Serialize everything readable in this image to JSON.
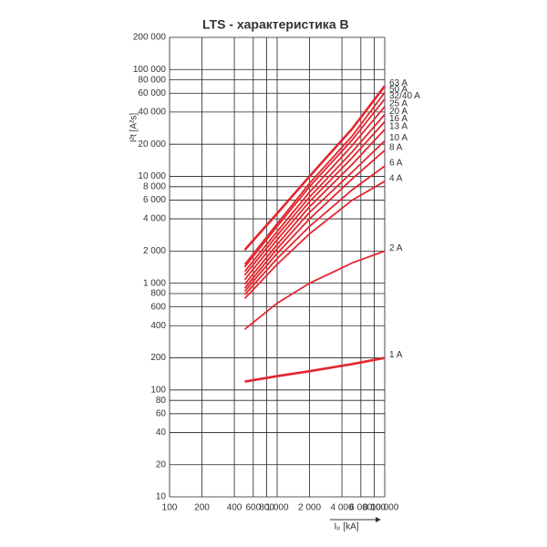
{
  "chart_data": {
    "type": "line",
    "title": "LTS - характеристика B",
    "y_label": "I²t [A²s]",
    "x_label": "Iₚ [kA]",
    "x": [
      500,
      1000,
      2000,
      5000,
      10000
    ],
    "xscale": "log",
    "yscale": "log",
    "grid": true,
    "xlim": [
      100,
      10000
    ],
    "xticks": [
      100,
      200,
      400,
      600,
      800,
      {
        "value": 1000,
        "label": "1 000"
      },
      {
        "value": 2000,
        "label": "2 000"
      },
      {
        "value": 4000,
        "label": "4 000"
      },
      {
        "value": 6000,
        "label": "6 000"
      },
      {
        "value": 8000,
        "label": "8 000"
      },
      {
        "value": 10000,
        "label": "10 000"
      }
    ],
    "ylim": [
      10,
      200000
    ],
    "yticks": [
      10,
      20,
      40,
      60,
      80,
      100,
      200,
      400,
      600,
      800,
      {
        "value": 1000,
        "label": "1 000"
      },
      {
        "value": 2000,
        "label": "2 000"
      },
      {
        "value": 4000,
        "label": "4 000"
      },
      {
        "value": 6000,
        "label": "6 000"
      },
      {
        "value": 8000,
        "label": "8 000"
      },
      {
        "value": 10000,
        "label": "10 000"
      },
      {
        "value": 20000,
        "label": "20 000"
      },
      {
        "value": 40000,
        "label": "40 000"
      },
      {
        "value": 60000,
        "label": "60 000"
      },
      {
        "value": 80000,
        "label": "80 000"
      },
      {
        "value": 100000,
        "label": "100 000"
      },
      {
        "value": 200000,
        "label": "200 000"
      }
    ],
    "series": [
      {
        "name": "1 A",
        "color": "#e3262e",
        "values": [
          120,
          135,
          150,
          175,
          200
        ]
      },
      {
        "name": "2 A",
        "color": "#e3262e",
        "values": [
          370,
          650,
          1000,
          1550,
          2000
        ]
      },
      {
        "name": "4 A",
        "color": "#e3262e",
        "values": [
          720,
          1500,
          2900,
          6000,
          9000
        ]
      },
      {
        "name": "6 A",
        "color": "#e3262e",
        "values": [
          780,
          1700,
          3400,
          7500,
          12500
        ]
      },
      {
        "name": "8 A",
        "color": "#e3262e",
        "values": [
          840,
          1900,
          4000,
          9500,
          17500
        ]
      },
      {
        "name": "10 A",
        "color": "#e3262e",
        "values": [
          900,
          2100,
          4600,
          11000,
          21500
        ]
      },
      {
        "name": "13 A",
        "color": "#e3262e",
        "values": [
          980,
          2300,
          5200,
          13000,
          27500
        ]
      },
      {
        "name": "16 A",
        "color": "#e3262e",
        "values": [
          1080,
          2550,
          5800,
          15000,
          32500
        ]
      },
      {
        "name": "20 A",
        "color": "#e3262e",
        "values": [
          1190,
          2800,
          6400,
          17000,
          38000
        ]
      },
      {
        "name": "25 A",
        "color": "#e3262e",
        "values": [
          1290,
          3050,
          7100,
          19500,
          45000
        ]
      },
      {
        "name": "32/40 A",
        "color": "#e3262e",
        "values": [
          1420,
          3400,
          8000,
          22000,
          53000
        ]
      },
      {
        "name": "50 A",
        "color": "#e3262e",
        "values": [
          1500,
          3600,
          8600,
          24000,
          61000
        ]
      },
      {
        "name": "63 A",
        "color": "#e3262e",
        "values": [
          2050,
          4500,
          10000,
          28000,
          70000
        ]
      }
    ]
  }
}
